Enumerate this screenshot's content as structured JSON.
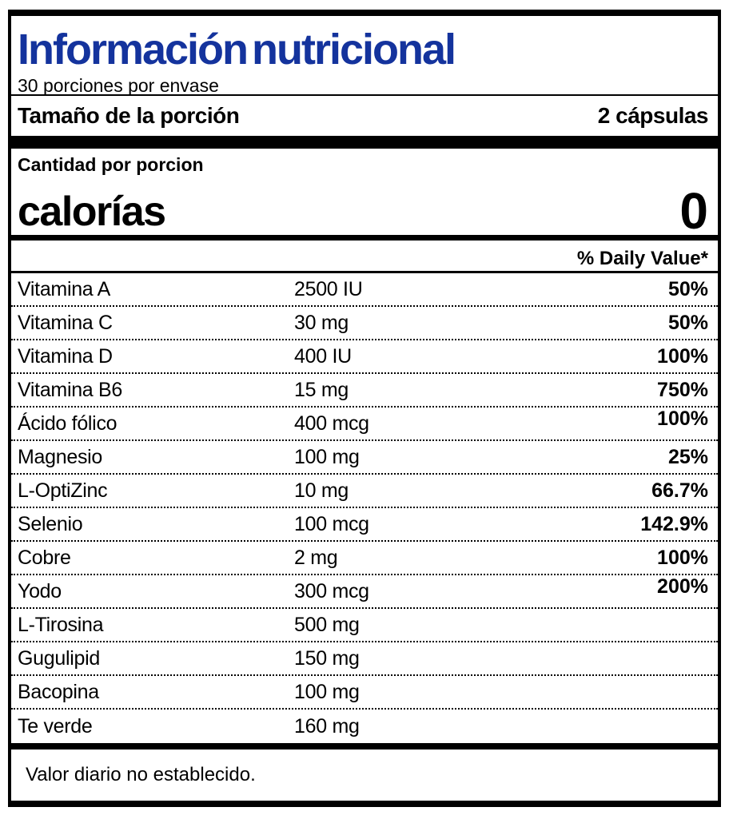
{
  "label": {
    "title": "Información nutricional",
    "servings_per_container": "30 porciones por envase",
    "serving_size_label": "Tamaño de la porción",
    "serving_size_value": "2 cápsulas",
    "amount_per_serving_label": "Cantidad por porcion",
    "calories_label": "calorías",
    "calories_value": "0",
    "daily_value_header": "% Daily Value*",
    "nutrients": [
      {
        "name": "Vitamina A",
        "amount": "2500 IU",
        "dv": "50%"
      },
      {
        "name": "Vitamina C",
        "amount": "30 mg",
        "dv": "50%"
      },
      {
        "name": "Vitamina D",
        "amount": "400 IU",
        "dv": "100%"
      },
      {
        "name": "Vitamina B6",
        "amount": "15 mg",
        "dv": "750%"
      },
      {
        "name": "Ácido fólico",
        "amount": "400 mcg",
        "dv": "100%",
        "dv_raised": true
      },
      {
        "name": "Magnesio",
        "amount": "100 mg",
        "dv": "25%"
      },
      {
        "name": "L-OptiZinc",
        "amount": "10 mg",
        "dv": "66.7%"
      },
      {
        "name": "Selenio",
        "amount": "100 mcg",
        "dv": "142.9%"
      },
      {
        "name": "Cobre",
        "amount": "2 mg",
        "dv": "100%"
      },
      {
        "name": "Yodo",
        "amount": "300 mcg",
        "dv": "200%",
        "dv_raised": true
      },
      {
        "name": "L-Tirosina",
        "amount": "500 mg",
        "dv": ""
      },
      {
        "name": "Gugulipid",
        "amount": "150 mg",
        "dv": ""
      },
      {
        "name": "Bacopina",
        "amount": "100 mg",
        "dv": ""
      },
      {
        "name": "Te verde",
        "amount": "160 mg",
        "dv": ""
      }
    ],
    "footnote": "Valor diario no establecido.",
    "colors": {
      "title_blue": "#14339D",
      "text_black": "#000000",
      "background": "#FFFFFF"
    }
  }
}
